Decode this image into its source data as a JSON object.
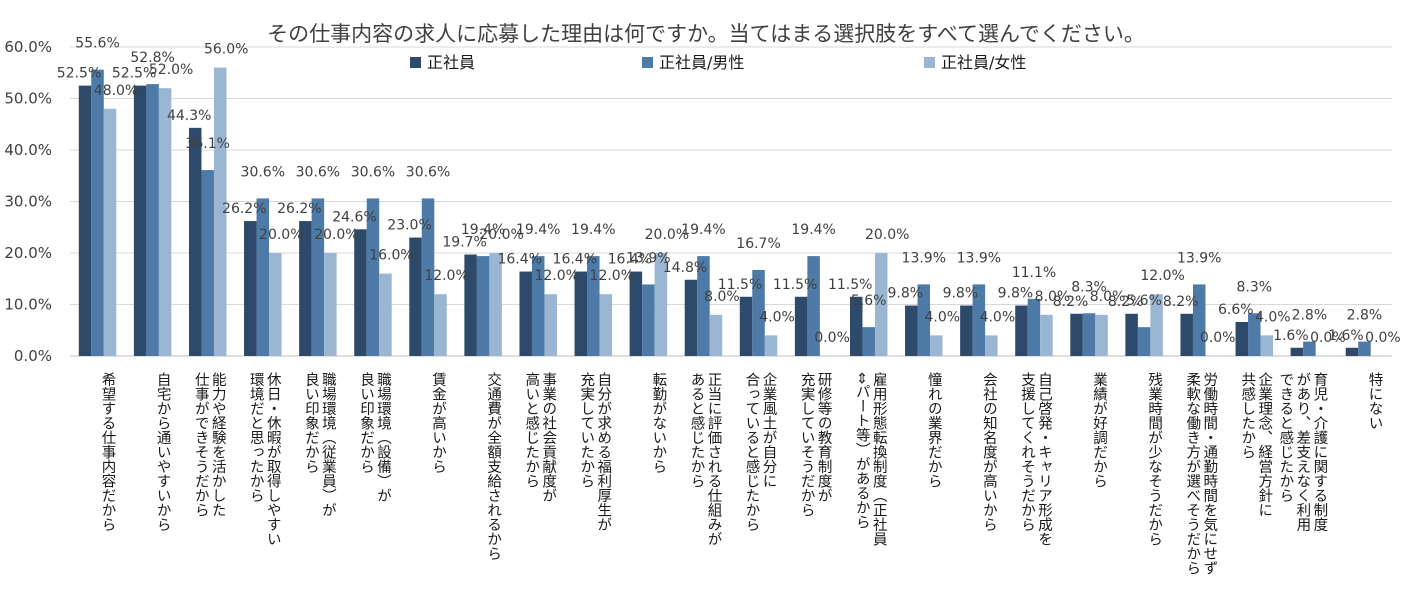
{
  "chart_data": {
    "type": "bar",
    "title": "その仕事内容の求人に応募した理由は何ですか。当てはまる選択肢をすべて選んでください。",
    "xlabel": "",
    "ylabel": "",
    "ylim": [
      0,
      60
    ],
    "yticks": [
      "0.0%",
      "10.0%",
      "20.0%",
      "30.0%",
      "40.0%",
      "50.0%",
      "60.0%"
    ],
    "grid": true,
    "legend_position": "top",
    "categories": [
      [
        "希望する仕事内容だから"
      ],
      [
        "自宅から通いやすいから"
      ],
      [
        "能力や経験を活かした",
        "仕事ができそうだから"
      ],
      [
        "休日・休暇が取得しやすい",
        "環境だと思ったから"
      ],
      [
        "職場環境（従業員）が",
        "良い印象だから"
      ],
      [
        "職場環境（設備）が",
        "良い印象だから"
      ],
      [
        "賃金が高いから"
      ],
      [
        "交通費が全額支給されるから"
      ],
      [
        "事業の社会貢献度が",
        "高いと感じたから"
      ],
      [
        "自分が求める福利厚生が",
        "充実していたから"
      ],
      [
        "転勤がないから"
      ],
      [
        "正当に評価される仕組みが",
        "あると感じたから"
      ],
      [
        "企業風土が自分に",
        "合っていると感じたから"
      ],
      [
        "研修等の教育制度が",
        "充実していそうだから"
      ],
      [
        "雇用形態転換制度（正社員",
        "⇔パート等）があるから"
      ],
      [
        "憧れの業界だから"
      ],
      [
        "会社の知名度が高いから"
      ],
      [
        "自己啓発・キャリア形成を",
        "支援してくれそうだから"
      ],
      [
        "業績が好調だから"
      ],
      [
        "残業時間が少なそうだから"
      ],
      [
        "労働時間・通勤時間を気にせず",
        "柔軟な働き方が選べそうだから"
      ],
      [
        "企業理念、経営方針に",
        "共感したから"
      ],
      [
        "育児・介護に関する制度",
        "があり、差支えなく利用",
        "できると感じたから"
      ],
      [
        "特にない"
      ]
    ],
    "series": [
      {
        "name": "正社員",
        "color": "#2e4a6b",
        "values": [
          52.5,
          52.5,
          44.3,
          26.2,
          26.2,
          24.6,
          23.0,
          19.7,
          16.4,
          16.4,
          16.4,
          14.8,
          11.5,
          11.5,
          11.5,
          9.8,
          9.8,
          9.8,
          8.2,
          8.2,
          8.2,
          6.6,
          1.6,
          1.6
        ],
        "labels": [
          "52.5%",
          "52.5%",
          "44.3%",
          "26.2%",
          "26.2%",
          "24.6%",
          "23.0%",
          "19.7%",
          "16.4%",
          "16.4%",
          "16.4%",
          "14.8%",
          "11.5%",
          "11.5%",
          "11.5%",
          "9.8%",
          "9.8%",
          "9.8%",
          "8.2%",
          "8.2%",
          "8.2%",
          "6.6%",
          "1.6%",
          "1.6%"
        ]
      },
      {
        "name": "正社員/男性",
        "color": "#4d7aa6",
        "values": [
          55.6,
          52.8,
          36.1,
          30.6,
          30.6,
          30.6,
          30.6,
          19.4,
          19.4,
          19.4,
          13.9,
          19.4,
          16.7,
          19.4,
          5.6,
          13.9,
          13.9,
          11.1,
          8.3,
          5.6,
          13.9,
          8.3,
          2.8,
          2.8
        ],
        "labels": [
          "55.6%",
          "52.8%",
          "36.1%",
          "30.6%",
          "30.6%",
          "30.6%",
          "30.6%",
          "19.4%",
          "19.4%",
          "19.4%",
          "13.9%",
          "19.4%",
          "16.7%",
          "19.4%",
          "5.6%",
          "13.9%",
          "13.9%",
          "11.1%",
          "8.3%",
          "5.6%",
          "13.9%",
          "8.3%",
          "2.8%",
          "2.8%"
        ]
      },
      {
        "name": "正社員/女性",
        "color": "#9bb6d3",
        "values": [
          48.0,
          52.0,
          56.0,
          20.0,
          20.0,
          16.0,
          12.0,
          20.0,
          12.0,
          12.0,
          20.0,
          8.0,
          4.0,
          0.0,
          20.0,
          4.0,
          4.0,
          8.0,
          8.0,
          12.0,
          0.0,
          4.0,
          0.0,
          0.0
        ],
        "labels": [
          "48.0%",
          "52.0%",
          "56.0%",
          "20.0%",
          "20.0%",
          "16.0%",
          "12.0%",
          "20.0%",
          "12.0%",
          "12.0%",
          "20.0%",
          "8.0%",
          "4.0%",
          "0.0%",
          "20.0%",
          "4.0%",
          "4.0%",
          "8.0%",
          "8.0%",
          "12.0%",
          "0.0%",
          "4.0%",
          "0.0%",
          "0.0%"
        ]
      }
    ]
  }
}
